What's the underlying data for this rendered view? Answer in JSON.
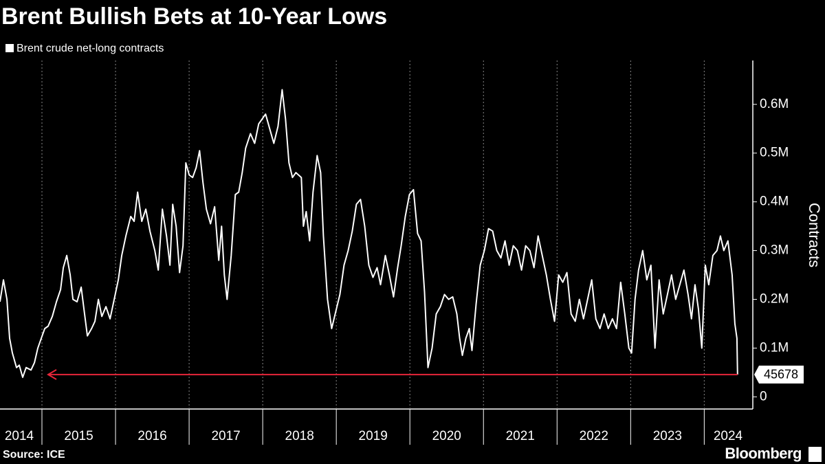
{
  "chart_data": {
    "type": "line",
    "title": "Brent Bullish Bets at 10-Year Lows",
    "y_label": "Contracts",
    "source": "Source: ICE",
    "brand": "Bloomberg",
    "grid": "x",
    "xlim": [
      2014.43,
      2024.66
    ],
    "xticks": [
      2014,
      2015,
      2016,
      2017,
      2018,
      2019,
      2020,
      2021,
      2022,
      2023,
      2024
    ],
    "ylim": [
      -25000,
      690000
    ],
    "yticks": [
      0,
      {
        "value": 100000,
        "label": "0.1M"
      },
      {
        "value": 200000,
        "label": "0.2M"
      },
      {
        "value": 300000,
        "label": "0.3M"
      },
      {
        "value": 400000,
        "label": "0.4M"
      },
      {
        "value": 500000,
        "label": "0.5M"
      },
      {
        "value": 600000,
        "label": "0.6M"
      }
    ],
    "x": [
      2014.43,
      2014.477,
      2014.524,
      2014.561,
      2014.598,
      2014.654,
      2014.692,
      2014.738,
      2014.785,
      2014.851,
      2014.898,
      2014.944,
      2014.991,
      2015.038,
      2015.084,
      2015.141,
      2015.197,
      2015.253,
      2015.29,
      2015.337,
      2015.384,
      2015.421,
      2015.477,
      2015.533,
      2015.571,
      2015.617,
      2015.674,
      2015.72,
      2015.767,
      2015.814,
      2015.87,
      2015.926,
      2015.982,
      2016.038,
      2016.085,
      2016.141,
      2016.207,
      2016.253,
      2016.3,
      2016.356,
      2016.412,
      2016.468,
      2016.534,
      2016.581,
      2016.637,
      2016.693,
      2016.739,
      2016.777,
      2016.824,
      2016.87,
      2016.917,
      2016.955,
      2017.001,
      2017.048,
      2017.095,
      2017.142,
      2017.188,
      2017.235,
      2017.291,
      2017.347,
      2017.403,
      2017.441,
      2017.478,
      2017.516,
      2017.572,
      2017.628,
      2017.674,
      2017.721,
      2017.768,
      2017.833,
      2017.89,
      2017.946,
      2018.039,
      2018.095,
      2018.151,
      2018.208,
      2018.264,
      2018.31,
      2018.357,
      2018.404,
      2018.451,
      2018.525,
      2018.553,
      2018.591,
      2018.638,
      2018.684,
      2018.74,
      2018.787,
      2018.825,
      2018.881,
      2018.937,
      2018.993,
      2019.049,
      2019.105,
      2019.161,
      2019.217,
      2019.273,
      2019.329,
      2019.386,
      2019.442,
      2019.498,
      2019.554,
      2019.601,
      2019.666,
      2019.722,
      2019.778,
      2019.834,
      2019.881,
      2019.937,
      2019.993,
      2020.049,
      2020.105,
      2020.152,
      2020.199,
      2020.246,
      2020.302,
      2020.358,
      2020.414,
      2020.47,
      2020.526,
      2020.582,
      2020.638,
      2020.676,
      2020.713,
      2020.76,
      2020.807,
      2020.844,
      2020.9,
      2020.956,
      2021.012,
      2021.069,
      2021.125,
      2021.181,
      2021.237,
      2021.293,
      2021.349,
      2021.405,
      2021.461,
      2021.517,
      2021.573,
      2021.63,
      2021.686,
      2021.742,
      2021.798,
      2021.854,
      2021.91,
      2021.966,
      2022.022,
      2022.078,
      2022.134,
      2022.191,
      2022.247,
      2022.303,
      2022.359,
      2022.415,
      2022.471,
      2022.527,
      2022.583,
      2022.639,
      2022.695,
      2022.752,
      2022.808,
      2022.864,
      2022.92,
      2022.976,
      2023.013,
      2023.06,
      2023.107,
      2023.163,
      2023.219,
      2023.275,
      2023.331,
      2023.387,
      2023.443,
      2023.5,
      2023.556,
      2023.612,
      2023.668,
      2023.724,
      2023.78,
      2023.827,
      2023.874,
      2023.921,
      2023.967,
      2024.014,
      2024.061,
      2024.117,
      2024.173,
      2024.22,
      2024.266,
      2024.322,
      2024.379,
      2024.416,
      2024.444,
      2024.453
    ],
    "series": [
      {
        "name": "Brent crude net-long contracts",
        "color": "#ffffff",
        "annotation_color": "#e8263a",
        "values": [
          195000,
          240000,
          200000,
          120000,
          90000,
          60000,
          65000,
          40000,
          60000,
          55000,
          70000,
          100000,
          120000,
          140000,
          145000,
          165000,
          195000,
          220000,
          265000,
          290000,
          250000,
          200000,
          195000,
          225000,
          180000,
          125000,
          140000,
          155000,
          200000,
          165000,
          185000,
          160000,
          200000,
          240000,
          290000,
          330000,
          370000,
          360000,
          420000,
          360000,
          385000,
          340000,
          300000,
          260000,
          385000,
          330000,
          270000,
          395000,
          350000,
          255000,
          310000,
          480000,
          455000,
          450000,
          470000,
          505000,
          440000,
          385000,
          355000,
          390000,
          280000,
          350000,
          250000,
          200000,
          290000,
          415000,
          420000,
          460000,
          510000,
          540000,
          520000,
          560000,
          580000,
          550000,
          520000,
          555000,
          630000,
          570000,
          480000,
          450000,
          460000,
          450000,
          350000,
          380000,
          320000,
          420000,
          495000,
          460000,
          330000,
          200000,
          140000,
          175000,
          210000,
          270000,
          300000,
          340000,
          395000,
          405000,
          350000,
          270000,
          245000,
          265000,
          230000,
          290000,
          250000,
          205000,
          265000,
          310000,
          370000,
          415000,
          425000,
          335000,
          320000,
          215000,
          60000,
          100000,
          170000,
          185000,
          210000,
          200000,
          205000,
          170000,
          120000,
          85000,
          120000,
          140000,
          95000,
          190000,
          270000,
          300000,
          345000,
          340000,
          300000,
          285000,
          320000,
          270000,
          310000,
          300000,
          260000,
          310000,
          300000,
          265000,
          330000,
          290000,
          250000,
          200000,
          155000,
          250000,
          235000,
          255000,
          170000,
          155000,
          200000,
          160000,
          200000,
          240000,
          160000,
          140000,
          170000,
          140000,
          160000,
          140000,
          235000,
          170000,
          100000,
          90000,
          200000,
          260000,
          300000,
          240000,
          270000,
          100000,
          240000,
          170000,
          210000,
          250000,
          200000,
          230000,
          260000,
          210000,
          160000,
          230000,
          180000,
          100000,
          270000,
          230000,
          290000,
          300000,
          330000,
          300000,
          320000,
          250000,
          150000,
          120000,
          45678
        ]
      }
    ]
  }
}
